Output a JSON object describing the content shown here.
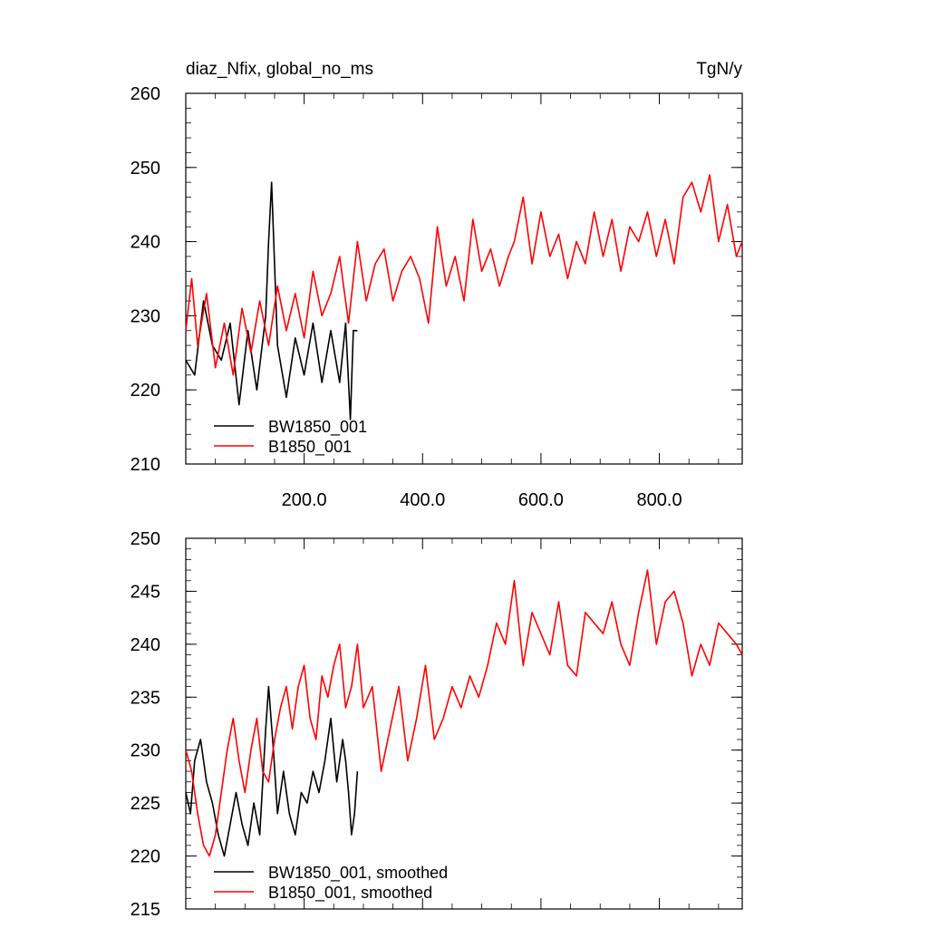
{
  "chart_data": [
    {
      "type": "line",
      "title_left": "diaz_Nfix, global_no_ms",
      "title_right": "TgN/y",
      "xlim": [
        0,
        940
      ],
      "ylim": [
        210,
        260
      ],
      "x_ticks": [
        200,
        400,
        600,
        800
      ],
      "x_tick_labels": [
        "200.0",
        "400.0",
        "600.0",
        "800.0"
      ],
      "y_ticks": [
        210,
        220,
        230,
        240,
        250,
        260
      ],
      "y_tick_labels": [
        "210",
        "220",
        "230",
        "240",
        "250",
        "260"
      ],
      "legend_position": "bottom-left",
      "series": [
        {
          "name": "BW1850_001",
          "color": "#000000",
          "x": [
            0,
            15,
            30,
            45,
            60,
            75,
            90,
            105,
            120,
            135,
            140,
            145,
            155,
            170,
            185,
            200,
            215,
            230,
            245,
            260,
            270,
            278,
            283,
            290
          ],
          "values": [
            224,
            222,
            232,
            226,
            224,
            229,
            218,
            228,
            220,
            230,
            240,
            248,
            226,
            219,
            227,
            222,
            229,
            221,
            228,
            221,
            229,
            216,
            228,
            228
          ]
        },
        {
          "name": "B1850_001",
          "color": "#ff0000",
          "x": [
            0,
            10,
            20,
            35,
            50,
            65,
            80,
            95,
            110,
            125,
            140,
            155,
            170,
            185,
            200,
            215,
            230,
            245,
            260,
            275,
            290,
            305,
            320,
            335,
            350,
            365,
            380,
            395,
            410,
            425,
            440,
            455,
            470,
            485,
            500,
            515,
            530,
            545,
            555,
            570,
            585,
            600,
            615,
            630,
            645,
            660,
            675,
            690,
            705,
            720,
            735,
            750,
            765,
            780,
            795,
            810,
            825,
            840,
            855,
            870,
            885,
            900,
            915,
            930,
            940
          ],
          "values": [
            228,
            235,
            226,
            233,
            223,
            229,
            222,
            231,
            225,
            232,
            226,
            234,
            228,
            233,
            227,
            236,
            230,
            233,
            238,
            229,
            240,
            232,
            237,
            239,
            232,
            236,
            238,
            235,
            229,
            242,
            234,
            238,
            232,
            243,
            236,
            239,
            234,
            238,
            240,
            246,
            237,
            244,
            238,
            241,
            235,
            240,
            237,
            244,
            238,
            243,
            236,
            242,
            240,
            244,
            238,
            243,
            237,
            246,
            248,
            244,
            249,
            240,
            245,
            238,
            240
          ]
        }
      ]
    },
    {
      "type": "line",
      "xlim": [
        0,
        940
      ],
      "ylim": [
        215,
        250
      ],
      "x_ticks": [
        200,
        400,
        600,
        800
      ],
      "x_tick_labels": [],
      "y_ticks": [
        215,
        220,
        225,
        230,
        235,
        240,
        245,
        250
      ],
      "y_tick_labels": [
        "215",
        "220",
        "225",
        "230",
        "235",
        "240",
        "245",
        "250"
      ],
      "legend_position": "bottom-left",
      "series": [
        {
          "name": "BW1850_001, smoothed",
          "color": "#000000",
          "x": [
            0,
            8,
            15,
            25,
            35,
            45,
            55,
            65,
            75,
            85,
            95,
            105,
            115,
            125,
            135,
            140,
            148,
            155,
            165,
            175,
            185,
            195,
            205,
            215,
            225,
            235,
            245,
            255,
            265,
            270,
            275,
            280,
            285,
            290
          ],
          "values": [
            226,
            224,
            229,
            231,
            227,
            225,
            222,
            220,
            223,
            226,
            223,
            221,
            225,
            222,
            232,
            236,
            230,
            224,
            228,
            224,
            222,
            226,
            225,
            228,
            226,
            229,
            233,
            227,
            231,
            229,
            226,
            222,
            224,
            228
          ]
        },
        {
          "name": "B1850_001, smoothed",
          "color": "#ff0000",
          "x": [
            0,
            10,
            20,
            30,
            40,
            50,
            60,
            70,
            80,
            90,
            100,
            110,
            120,
            130,
            140,
            150,
            160,
            170,
            180,
            190,
            200,
            210,
            220,
            230,
            240,
            250,
            260,
            270,
            280,
            290,
            300,
            315,
            330,
            345,
            360,
            375,
            390,
            405,
            420,
            435,
            450,
            465,
            480,
            495,
            510,
            525,
            540,
            555,
            570,
            585,
            600,
            615,
            630,
            645,
            660,
            675,
            690,
            705,
            720,
            735,
            750,
            765,
            780,
            795,
            810,
            825,
            840,
            855,
            870,
            885,
            900,
            915,
            930,
            940
          ],
          "values": [
            230,
            228,
            224,
            221,
            220,
            222,
            226,
            230,
            233,
            229,
            226,
            230,
            233,
            228,
            227,
            231,
            234,
            236,
            232,
            236,
            238,
            233,
            231,
            237,
            235,
            238,
            240,
            234,
            236,
            240,
            234,
            236,
            228,
            232,
            236,
            229,
            233,
            238,
            231,
            233,
            236,
            234,
            237,
            235,
            238,
            242,
            240,
            246,
            238,
            243,
            241,
            239,
            244,
            238,
            237,
            243,
            242,
            241,
            244,
            240,
            238,
            243,
            247,
            240,
            244,
            245,
            242,
            237,
            240,
            238,
            242,
            241,
            240,
            239
          ]
        }
      ]
    }
  ]
}
